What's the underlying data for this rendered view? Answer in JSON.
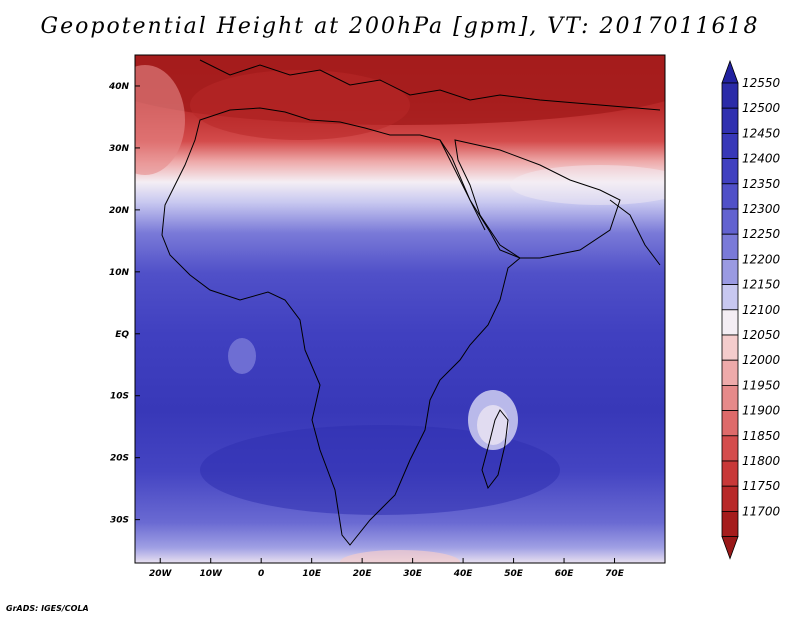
{
  "title": "Geopotential Height at 200hPa [gpm], VT: 2017011618",
  "credit": "GrADS: IGES/COLA",
  "map": {
    "lon_range": [
      -25,
      80
    ],
    "lat_range": [
      -37,
      45
    ],
    "lon_ticks": [
      {
        "value": -20,
        "label": "20W"
      },
      {
        "value": -10,
        "label": "10W"
      },
      {
        "value": 0,
        "label": "0"
      },
      {
        "value": 10,
        "label": "10E"
      },
      {
        "value": 20,
        "label": "20E"
      },
      {
        "value": 30,
        "label": "30E"
      },
      {
        "value": 40,
        "label": "40E"
      },
      {
        "value": 50,
        "label": "50E"
      },
      {
        "value": 60,
        "label": "60E"
      },
      {
        "value": 70,
        "label": "70E"
      }
    ],
    "lat_ticks": [
      {
        "value": 40,
        "label": "40N"
      },
      {
        "value": 30,
        "label": "30N"
      },
      {
        "value": 20,
        "label": "20N"
      },
      {
        "value": 10,
        "label": "10N"
      },
      {
        "value": 0,
        "label": "EQ"
      },
      {
        "value": -10,
        "label": "10S"
      },
      {
        "value": -20,
        "label": "20S"
      },
      {
        "value": -30,
        "label": "30S"
      }
    ]
  },
  "colorbar": {
    "levels": [
      {
        "label": "12550",
        "color": "#2b2ba8"
      },
      {
        "label": "12500",
        "color": "#3030b0"
      },
      {
        "label": "12450",
        "color": "#3838b8"
      },
      {
        "label": "12400",
        "color": "#4040c0"
      },
      {
        "label": "12350",
        "color": "#5050c8"
      },
      {
        "label": "12300",
        "color": "#6262d0"
      },
      {
        "label": "12250",
        "color": "#7a7ad8"
      },
      {
        "label": "12200",
        "color": "#9a9ae2"
      },
      {
        "label": "12150",
        "color": "#c8c8f0"
      },
      {
        "label": "12100",
        "color": "#f4eef4"
      },
      {
        "label": "12050",
        "color": "#f4cccc"
      },
      {
        "label": "12000",
        "color": "#eeaaaa"
      },
      {
        "label": "11950",
        "color": "#e68a8a"
      },
      {
        "label": "11900",
        "color": "#de6a6a"
      },
      {
        "label": "11850",
        "color": "#d44c4c"
      },
      {
        "label": "11800",
        "color": "#c83838"
      },
      {
        "label": "11750",
        "color": "#b82828"
      },
      {
        "label": "11700",
        "color": "#a51c1c"
      }
    ],
    "top_arrow_color": "#2222a0",
    "bottom_arrow_color": "#991818"
  }
}
